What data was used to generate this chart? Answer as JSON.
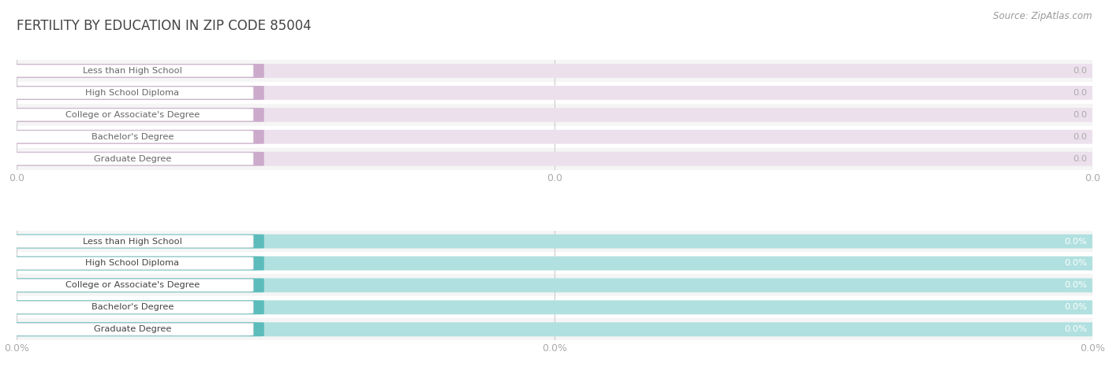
{
  "title": "Fertility by Education Attainment in Zip Code 85004",
  "title_display": "FERTILITY BY EDUCATION IN ZIP CODE 85004",
  "source": "Source: ZipAtlas.com",
  "categories": [
    "Less than High School",
    "High School Diploma",
    "College or Associate's Degree",
    "Bachelor's Degree",
    "Graduate Degree"
  ],
  "values_top": [
    0.0,
    0.0,
    0.0,
    0.0,
    0.0
  ],
  "values_bottom": [
    0.0,
    0.0,
    0.0,
    0.0,
    0.0
  ],
  "labels_top": [
    "0.0",
    "0.0",
    "0.0",
    "0.0",
    "0.0"
  ],
  "labels_bottom": [
    "0.0%",
    "0.0%",
    "0.0%",
    "0.0%",
    "0.0%"
  ],
  "bar_color_top": "#cbaacb",
  "bar_color_bottom": "#5bbcbb",
  "bar_bg_color_top": "#ede0ed",
  "bar_bg_color_bottom": "#b0e0df",
  "label_text_color_top": "#aaaaaa",
  "label_text_color_bottom": "#ffffff",
  "cat_text_color_top": "#666666",
  "cat_text_color_bottom": "#444444",
  "row_sep_color": "#e8e8e8",
  "title_color": "#444444",
  "source_color": "#999999",
  "axis_label_color": "#aaaaaa",
  "xtick_labels_top": [
    "0.0",
    "0.0",
    "0.0"
  ],
  "xtick_labels_bottom": [
    "0.0%",
    "0.0%",
    "0.0%"
  ],
  "figsize": [
    14.06,
    4.75
  ],
  "dpi": 100
}
